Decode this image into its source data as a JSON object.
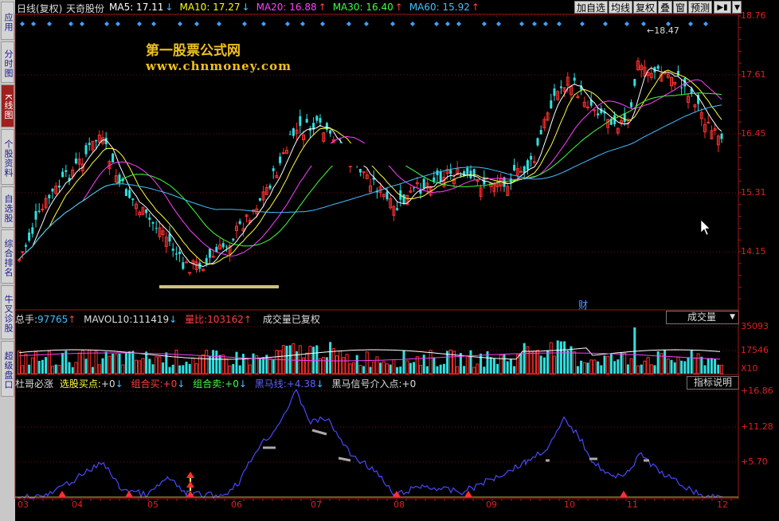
{
  "window": {
    "chart_mode": "日线(复权)",
    "stock_name": "天奇股份"
  },
  "ma_legend": [
    {
      "label": "MA5: 17.11",
      "arrow": "↓",
      "color": "#ffffff"
    },
    {
      "label": "MA10: 17.27",
      "arrow": "↓",
      "color": "#ffff00"
    },
    {
      "label": "MA20: 16.88",
      "arrow": "↑",
      "color": "#ff40ff"
    },
    {
      "label": "MA30: 16.40",
      "arrow": "↑",
      "color": "#40ff40"
    },
    {
      "label": "MA60: 15.92",
      "arrow": "↑",
      "color": "#40c0ff"
    }
  ],
  "toolbar": {
    "add_watch": "加自选",
    "ma_line": "均线",
    "restore": "复权",
    "overlay": "叠",
    "window": "窗",
    "forecast": "预测"
  },
  "sidebar": [
    {
      "label": "应用",
      "active": false
    },
    {
      "label": "分时图",
      "active": false
    },
    {
      "label": "K线图",
      "active": true
    },
    {
      "label": "个股资料",
      "active": false
    },
    {
      "label": "自选股",
      "active": false
    },
    {
      "label": "综合排名",
      "active": false
    },
    {
      "label": "牛叉诊股",
      "active": false
    },
    {
      "label": "超级盘口",
      "active": false
    }
  ],
  "watermark": {
    "line1": "第一股票公式网",
    "line2": "www.chnmoney.com"
  },
  "price_axis": [
    "18.76",
    "17.61",
    "16.45",
    "15.31",
    "14.15"
  ],
  "peak_label": "18.47",
  "finance_marker": "财",
  "volume_panel": {
    "total_hands_label": "总手:",
    "total_hands": "97765",
    "total_arrow": "↑",
    "mavol_label": "MAVOL10:",
    "mavol": "111419",
    "mavol_arrow": "↓",
    "ratio_label": "量比:",
    "ratio": "103162",
    "ratio_arrow": "↑",
    "note": "成交量已复权",
    "selector": "成交量",
    "axis": [
      "35093",
      "17546",
      "X10"
    ]
  },
  "indicator_panel": {
    "name": "杜哥必涨",
    "buy_label": "选股买点:",
    "buy_value": "+0",
    "combo_buy_label": "组合买:",
    "combo_buy_value": "+0",
    "combo_sell_label": "组合卖:",
    "combo_sell_value": "+0",
    "dark_horse_label": "黑马线:",
    "dark_horse_value": "+4.38",
    "dark_horse_entry_label": "黑马信号介入点:",
    "dark_horse_entry_value": "+0",
    "help_button": "指标说明",
    "axis": [
      "+16.86",
      "+11.28",
      "+5.70"
    ]
  },
  "months": [
    "03",
    "04",
    "05",
    "06",
    "07",
    "08",
    "09",
    "10",
    "11",
    "12"
  ]
}
